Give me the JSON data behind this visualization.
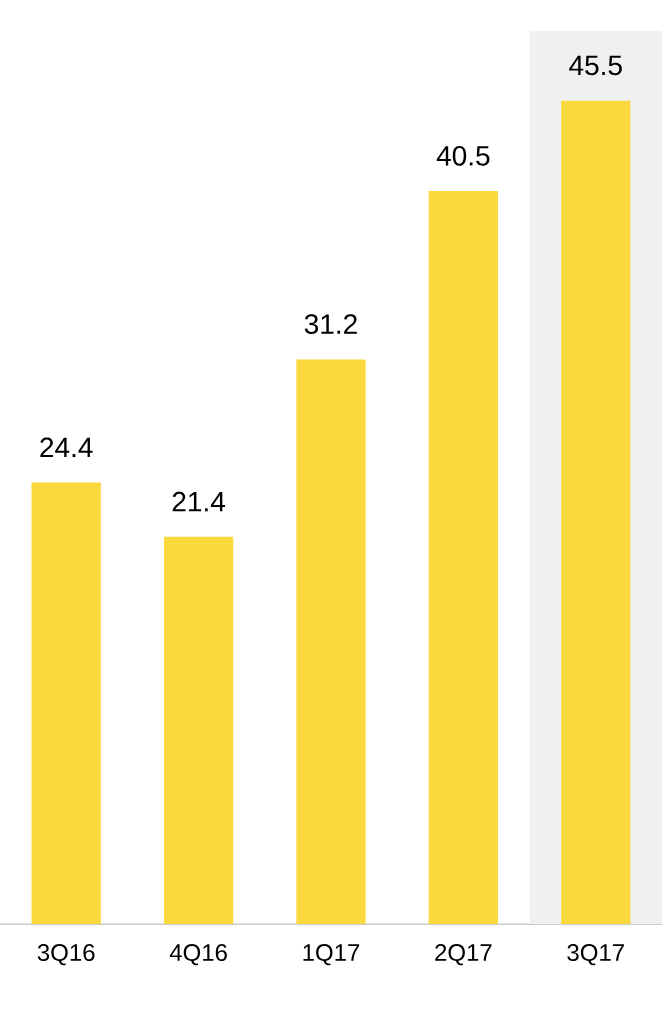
{
  "chart_data": {
    "type": "bar",
    "categories": [
      "3Q16",
      "4Q16",
      "1Q17",
      "2Q17",
      "3Q17"
    ],
    "values": [
      24.4,
      21.4,
      31.2,
      40.5,
      45.5
    ],
    "color": "#f9d93e",
    "data_labels": true,
    "bands": [
      {
        "axis": "x",
        "from": "3Q17",
        "to": "3Q17",
        "color": "#f0f0f0"
      }
    ]
  }
}
